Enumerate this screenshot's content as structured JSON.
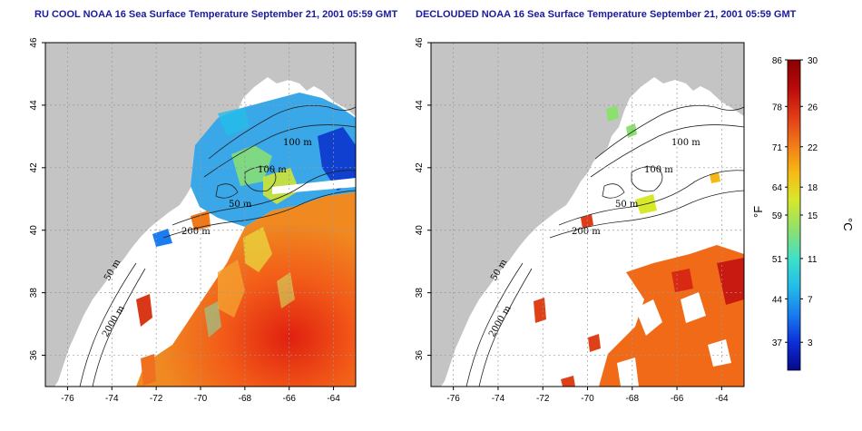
{
  "titles": {
    "left": "RU COOL NOAA 16 Sea Surface Temperature September 21, 2001 05:59 GMT",
    "right": "DECLOUDED NOAA 16 Sea Surface Temperature September 21, 2001 05:59 GMT"
  },
  "axes": {
    "x_ticks": [
      "-76",
      "-74",
      "-72",
      "-70",
      "-68",
      "-66",
      "-64"
    ],
    "y_ticks": [
      "36",
      "38",
      "40",
      "42",
      "44",
      "46"
    ],
    "lon_range": [
      -77,
      -63
    ],
    "lat_range": [
      35,
      46
    ]
  },
  "contour_labels": [
    "100 m",
    "100 m",
    "50 m",
    "200 m",
    "50 m",
    "2000 m"
  ],
  "colorbar": {
    "fahrenheit_label": "°F",
    "celsius_label": "°C",
    "fahrenheit_ticks": [
      "86",
      "78",
      "71",
      "64",
      "59",
      "51",
      "44",
      "37"
    ],
    "celsius_ticks": [
      "30",
      "26",
      "22",
      "18",
      "15",
      "11",
      "7",
      "3"
    ],
    "colors": [
      "#08088a",
      "#0a2fd8",
      "#1a7cf0",
      "#22bde8",
      "#3fe0c8",
      "#8ce070",
      "#d8e82a",
      "#f6b815",
      "#f07818",
      "#e03a18",
      "#b80a0a",
      "#8a0000"
    ]
  }
}
